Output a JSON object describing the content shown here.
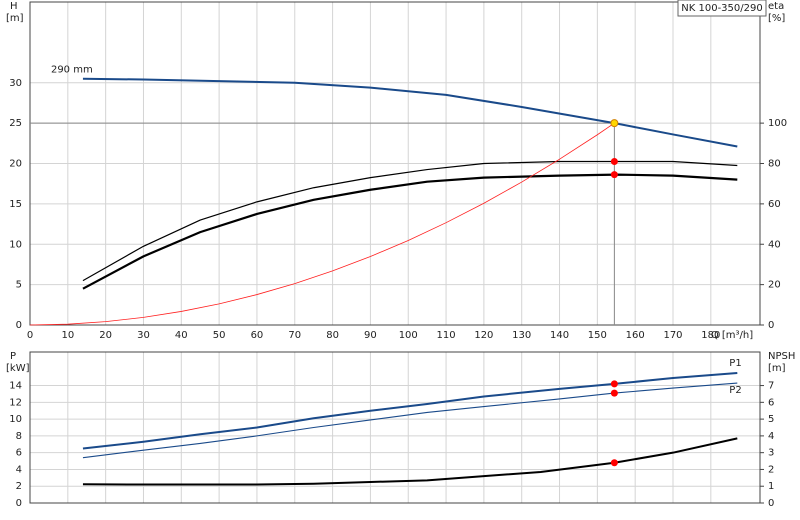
{
  "chart_data": [
    {
      "type": "line",
      "title": "NK 100-350/290",
      "ylabel": [
        "H",
        "[m]"
      ],
      "y2label": [
        "eta",
        "[%]"
      ],
      "xlabel": "Q [m³/h]",
      "xlim": [
        0,
        193
      ],
      "xticks": [
        0,
        10,
        20,
        30,
        40,
        50,
        60,
        70,
        80,
        90,
        100,
        110,
        120,
        130,
        140,
        150,
        160,
        170,
        180
      ],
      "ylim": [
        0,
        40
      ],
      "yticks": [
        0,
        5,
        10,
        15,
        20,
        25,
        30
      ],
      "y2lim": [
        0,
        160
      ],
      "y2ticks": [
        0,
        20,
        40,
        60,
        80,
        100
      ],
      "grid": true,
      "crosshair": {
        "x": 154.5,
        "y": 25,
        "color": "#888888"
      },
      "series": [
        {
          "name": "290 mm",
          "color": "#1a4a8a",
          "width": 2,
          "axis": "y",
          "x": [
            14,
            30,
            50,
            70,
            90,
            110,
            130,
            154.5,
            170,
            187
          ],
          "values": [
            30.5,
            30.4,
            30.2,
            30.0,
            29.4,
            28.5,
            27.0,
            25.0,
            23.6,
            22.1
          ]
        },
        {
          "color": "#000000",
          "width": 1.2,
          "axis": "y2",
          "x": [
            14,
            30,
            45,
            60,
            75,
            90,
            105,
            120,
            140,
            155,
            170,
            187
          ],
          "values": [
            22,
            39,
            52,
            61,
            68,
            73,
            77,
            80,
            81,
            81,
            81,
            79
          ]
        },
        {
          "color": "#000000",
          "width": 2.2,
          "axis": "y2",
          "x": [
            14,
            30,
            45,
            60,
            75,
            90,
            105,
            120,
            140,
            155,
            170,
            187
          ],
          "values": [
            18,
            34,
            46,
            55,
            62,
            67,
            71,
            73,
            74,
            74.5,
            74,
            72
          ]
        },
        {
          "color": "#ff2020",
          "width": 0.8,
          "axis": "y",
          "x": [
            0,
            10,
            20,
            30,
            40,
            50,
            60,
            70,
            80,
            90,
            100,
            110,
            120,
            130,
            140,
            150,
            154.5
          ],
          "values": [
            0,
            0.1,
            0.42,
            0.94,
            1.68,
            2.62,
            3.77,
            5.13,
            6.7,
            8.48,
            10.47,
            12.67,
            15.08,
            17.7,
            20.53,
            23.56,
            25
          ]
        }
      ],
      "markers": [
        {
          "x": 154.5,
          "y": 25,
          "axis": "y",
          "color": "#ffd700"
        },
        {
          "x": 154.5,
          "y": 81,
          "axis": "y2",
          "color": "#ff0000"
        },
        {
          "x": 154.5,
          "y": 74.5,
          "axis": "y2",
          "color": "#ff0000"
        }
      ]
    },
    {
      "type": "line",
      "ylabel": [
        "P",
        "[kW]"
      ],
      "y2label": [
        "NPSH",
        "[m]"
      ],
      "ylim": [
        0,
        18
      ],
      "yticks": [
        0,
        2,
        4,
        6,
        8,
        10,
        12,
        14
      ],
      "y2lim": [
        0,
        9
      ],
      "y2ticks": [
        0,
        1,
        2,
        3,
        4,
        5,
        6,
        7
      ],
      "grid": true,
      "series": [
        {
          "name": "P1",
          "color": "#1a4a8a",
          "width": 2,
          "axis": "y",
          "x": [
            14,
            30,
            45,
            60,
            75,
            90,
            105,
            120,
            140,
            154.5,
            170,
            187
          ],
          "values": [
            6.5,
            7.3,
            8.2,
            9.0,
            10.1,
            11.0,
            11.8,
            12.7,
            13.6,
            14.2,
            14.9,
            15.5
          ]
        },
        {
          "name": "P2",
          "color": "#1a4a8a",
          "width": 1.1,
          "axis": "y",
          "x": [
            14,
            30,
            45,
            60,
            75,
            90,
            105,
            120,
            140,
            154.5,
            170,
            187
          ],
          "values": [
            5.4,
            6.3,
            7.1,
            8.0,
            9.0,
            9.9,
            10.8,
            11.5,
            12.4,
            13.1,
            13.7,
            14.3
          ]
        },
        {
          "color": "#000000",
          "width": 2,
          "axis": "y2",
          "x": [
            14,
            30,
            60,
            75,
            90,
            105,
            120,
            135,
            154.5,
            170,
            187
          ],
          "values": [
            1.12,
            1.1,
            1.1,
            1.15,
            1.25,
            1.35,
            1.6,
            1.85,
            2.4,
            3.0,
            3.85
          ]
        }
      ],
      "markers": [
        {
          "x": 154.5,
          "y": 14.2,
          "axis": "y",
          "color": "#ff0000"
        },
        {
          "x": 154.5,
          "y": 13.1,
          "axis": "y",
          "color": "#ff0000"
        },
        {
          "x": 154.5,
          "y": 2.4,
          "axis": "y2",
          "color": "#ff0000"
        }
      ]
    }
  ]
}
